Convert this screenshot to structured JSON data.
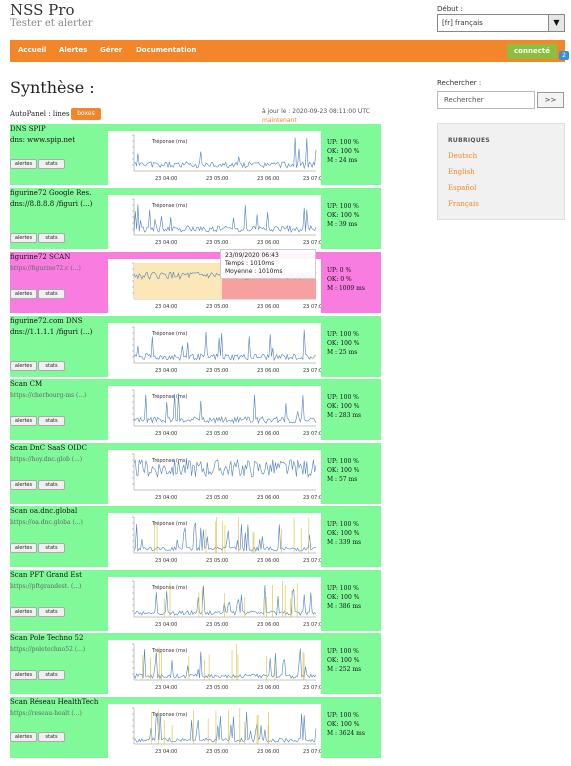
{
  "header": {
    "title": "NSS Pro",
    "subtitle": "Tester et alerter",
    "lang_label": "Début :",
    "lang_value": "[fr] français"
  },
  "nav": {
    "items": [
      "Accueil",
      "Alertes",
      "Gérer",
      "Documentation"
    ],
    "connect": "connecté",
    "badge": "2"
  },
  "main": {
    "title": "Synthèse :",
    "autopanel": "AutoPanel : lines",
    "boxes": "boxes",
    "update": "à jour le : 2020-09-23 08:11:00 UTC",
    "update_link": "maintenant"
  },
  "search": {
    "label": "Rechercher :",
    "placeholder": "Rechercher",
    "button": ">>"
  },
  "rubriques": {
    "title": "RUBRIQUES",
    "items": [
      "Deutsch",
      "English",
      "Español",
      "Français"
    ]
  },
  "buttons": {
    "alertes": "alertes",
    "stats": "stats"
  },
  "chart_labels": {
    "series": "Tréponse (ms)",
    "xticks": [
      "23 04:00",
      "23 05:00",
      "23 06:00",
      "23 07:00"
    ]
  },
  "tooltip": {
    "date": "23/09/2020 06:43",
    "temps": "Temps : 1010ms",
    "moyenne": "Moyenne : 1010ms"
  },
  "colors": {
    "up": "#80f999",
    "down": "#f97ce0",
    "accent": "#f3862a",
    "line": "#4f81bd"
  },
  "services": [
    {
      "name": "DNS SPIP",
      "addr": "dns: www.spip.net",
      "up": "UP: 100 %",
      "ok": "OK: 100 %",
      "m": "M : 24 ms",
      "status": "up"
    },
    {
      "name": "figurine72 Google Res.",
      "addr": "dns://8.8.8.8 /figuri (...)",
      "up": "UP: 100 %",
      "ok": "OK: 100 %",
      "m": "M : 39 ms",
      "status": "up"
    },
    {
      "name": "figurine72 SCAN",
      "addr": "https://figurine72.c (...)",
      "up": "UP: 0 %",
      "ok": "OK: 0 %",
      "m": "M : 1009 ms",
      "status": "down"
    },
    {
      "name": "figurine72.com DNS",
      "addr": "dns://1.1.1.1 /figuri (...)",
      "up": "UP: 100 %",
      "ok": "OK: 100 %",
      "m": "M : 25 ms",
      "status": "up"
    },
    {
      "name": "Scan CM",
      "addr": "https://cherbourg-ms (...)",
      "up": "UP: 100 %",
      "ok": "OK: 100 %",
      "m": "M : 283 ms",
      "status": "up"
    },
    {
      "name": "Scan DnC SaaS OIDC",
      "addr": "https://hoy.dnc.glob (...)",
      "up": "UP: 100 %",
      "ok": "OK: 100 %",
      "m": "M : 57 ms",
      "status": "up"
    },
    {
      "name": "Scan oa.dnc.global",
      "addr": "https://oa.dnc.globa (...)",
      "up": "UP: 100 %",
      "ok": "OK: 100 %",
      "m": "M : 339 ms",
      "status": "up"
    },
    {
      "name": "Scan PFT Grand Est",
      "addr": "https://pftgrandest. (...)",
      "up": "UP: 100 %",
      "ok": "OK: 100 %",
      "m": "M : 386 ms",
      "status": "up"
    },
    {
      "name": "Scan Pole Techno 52",
      "addr": "https://poletechno52 (...)",
      "up": "UP: 100 %",
      "ok": "OK: 100 %",
      "m": "M : 252 ms",
      "status": "up"
    },
    {
      "name": "Scan Réseau HealthTech",
      "addr": "https://reseau-healt (...)",
      "up": "UP: 100 %",
      "ok": "OK: 100 %",
      "m": "M : 3624 ms",
      "status": "up"
    }
  ]
}
